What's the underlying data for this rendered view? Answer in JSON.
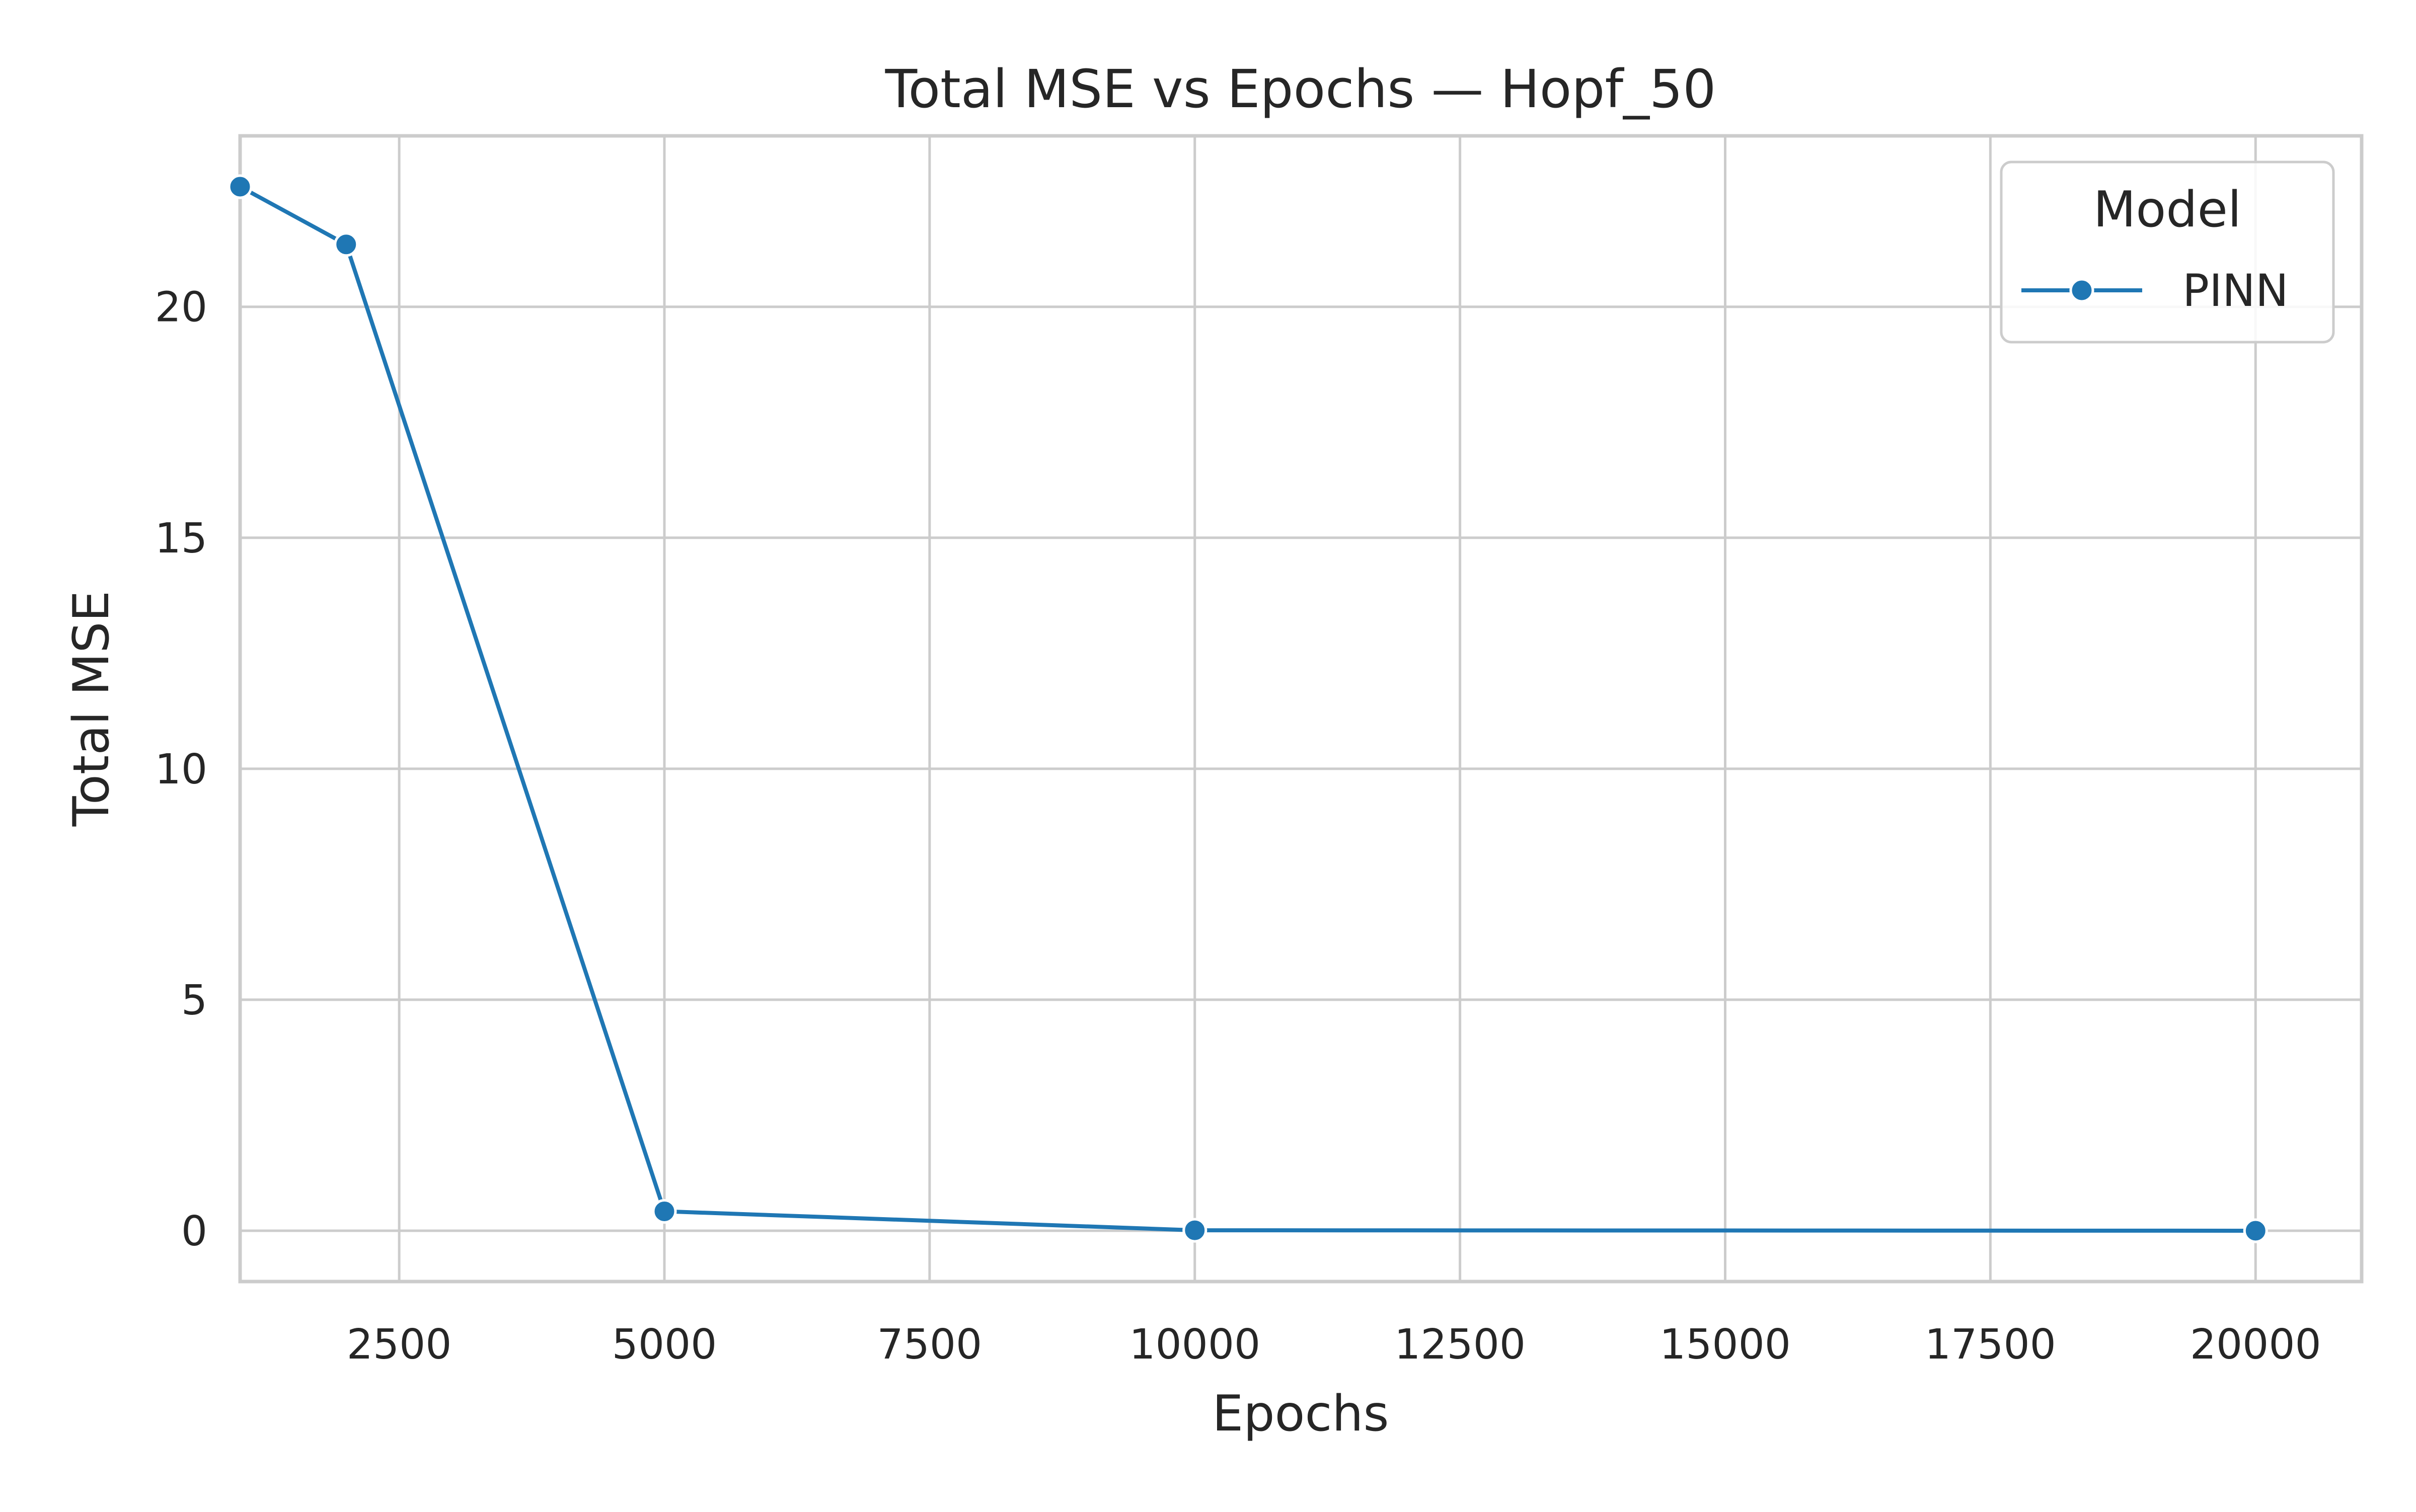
{
  "chart_data": {
    "type": "line",
    "title": "Total MSE vs Epochs — Hopf_50",
    "xlabel": "Epochs",
    "ylabel": "Total MSE",
    "xlim": [
      1000,
      21000
    ],
    "ylim": [
      -1.1,
      23.7
    ],
    "xticks": [
      2500,
      5000,
      7500,
      10000,
      12500,
      15000,
      17500,
      20000
    ],
    "yticks": [
      0,
      5,
      10,
      15,
      20
    ],
    "grid": true,
    "legend": {
      "title": "Model",
      "placement": "top-right"
    },
    "series": [
      {
        "name": "PINN",
        "color": "#1f77b4",
        "marker": "circle",
        "x": [
          1000,
          2000,
          5000,
          10000,
          20000
        ],
        "y": [
          22.6,
          21.35,
          0.42,
          0.01,
          0.0
        ]
      }
    ]
  }
}
